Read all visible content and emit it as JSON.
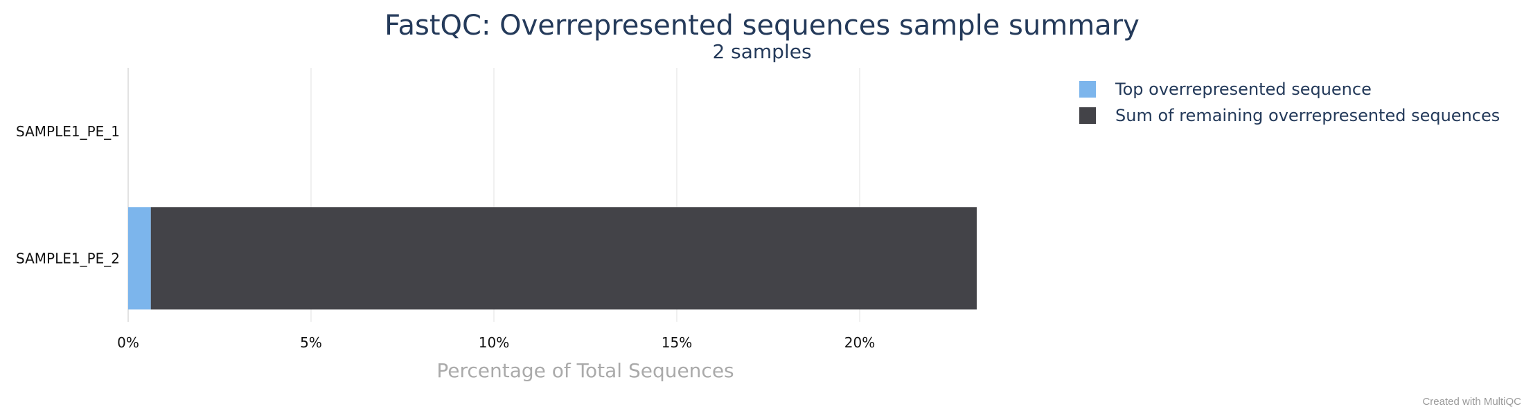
{
  "chart_data": {
    "type": "bar",
    "orientation": "horizontal",
    "stacked": true,
    "title": "FastQC: Overrepresented sequences sample summary",
    "subtitle": "2 samples",
    "xlabel": "Percentage of Total Sequences",
    "ylabel": "",
    "xlim": [
      0,
      25
    ],
    "xticks": [
      {
        "value": 0,
        "label": "0%"
      },
      {
        "value": 5,
        "label": "5%"
      },
      {
        "value": 10,
        "label": "10%"
      },
      {
        "value": 15,
        "label": "15%"
      },
      {
        "value": 20,
        "label": "20%"
      }
    ],
    "categories": [
      "SAMPLE1_PE_1",
      "SAMPLE1_PE_2"
    ],
    "series": [
      {
        "name": "Top overrepresented sequence",
        "color": "#7cb5ec",
        "values": [
          0,
          0.62
        ]
      },
      {
        "name": "Sum of remaining overrepresented sequences",
        "color": "#434348",
        "values": [
          0,
          22.58
        ]
      }
    ],
    "grid": true,
    "legend_position": "top-right"
  },
  "footer": {
    "credit": "Created with MultiQC"
  }
}
